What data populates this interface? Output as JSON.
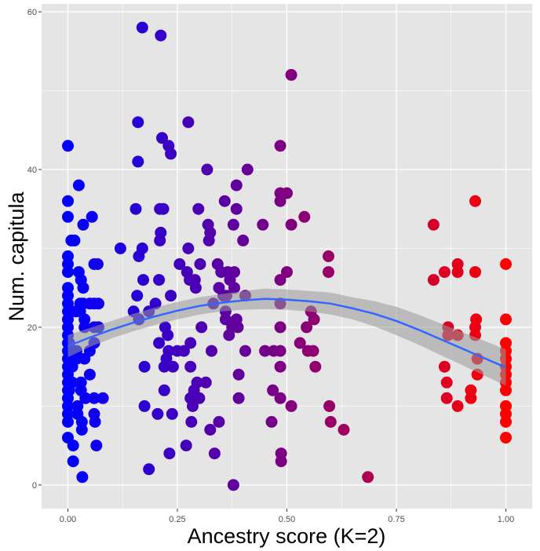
{
  "chart_data": {
    "type": "scatter",
    "xlabel": "Ancestry score (K=2)",
    "ylabel": "Num. capitula",
    "xlim": [
      -0.06,
      1.06
    ],
    "ylim": [
      -3,
      61
    ],
    "x_ticks": [
      0.0,
      0.25,
      0.5,
      0.75,
      1.0
    ],
    "x_tick_labels": [
      "0.00",
      "0.25",
      "0.50",
      "0.75",
      "1.00"
    ],
    "y_ticks": [
      0,
      20,
      40,
      60
    ],
    "y_tick_labels": [
      "0",
      "20",
      "40",
      "60"
    ],
    "grid": true,
    "legend": "none",
    "colors": {
      "panel": "#e5e5e5",
      "grid": "#ffffff",
      "low": "#0000ff",
      "high": "#ff0000",
      "fit_line": "#3366ff",
      "band": "#999999"
    },
    "points": [
      [
        0.0,
        43
      ],
      [
        0.0,
        36
      ],
      [
        0.0,
        34
      ],
      [
        0.0,
        29
      ],
      [
        0.0,
        28
      ],
      [
        0.0,
        27
      ],
      [
        0.0,
        25
      ],
      [
        0.0,
        24
      ],
      [
        0.0,
        23
      ],
      [
        0.0,
        22
      ],
      [
        0.0,
        21
      ],
      [
        0.0,
        20
      ],
      [
        0.0,
        19
      ],
      [
        0.0,
        18
      ],
      [
        0.0,
        17
      ],
      [
        0.0,
        16
      ],
      [
        0.0,
        15
      ],
      [
        0.0,
        14
      ],
      [
        0.0,
        13
      ],
      [
        0.0,
        12
      ],
      [
        0.0,
        11
      ],
      [
        0.0,
        10
      ],
      [
        0.0,
        9
      ],
      [
        0.0,
        8
      ],
      [
        0.0,
        6
      ],
      [
        0.003,
        18
      ],
      [
        0.003,
        12
      ],
      [
        0.005,
        16
      ],
      [
        0.005,
        22
      ],
      [
        0.008,
        31
      ],
      [
        0.01,
        15
      ],
      [
        0.01,
        13
      ],
      [
        0.012,
        5
      ],
      [
        0.012,
        3
      ],
      [
        0.015,
        31
      ],
      [
        0.018,
        22
      ],
      [
        0.02,
        17
      ],
      [
        0.02,
        16
      ],
      [
        0.022,
        10
      ],
      [
        0.022,
        9
      ],
      [
        0.025,
        27
      ],
      [
        0.025,
        38
      ],
      [
        0.028,
        23
      ],
      [
        0.028,
        22
      ],
      [
        0.03,
        26
      ],
      [
        0.03,
        13
      ],
      [
        0.03,
        12
      ],
      [
        0.032,
        8
      ],
      [
        0.032,
        7
      ],
      [
        0.033,
        1
      ],
      [
        0.035,
        33
      ],
      [
        0.035,
        25
      ],
      [
        0.035,
        23
      ],
      [
        0.038,
        21
      ],
      [
        0.038,
        20
      ],
      [
        0.038,
        16
      ],
      [
        0.04,
        11
      ],
      [
        0.05,
        23
      ],
      [
        0.05,
        17
      ],
      [
        0.05,
        14
      ],
      [
        0.055,
        34
      ],
      [
        0.06,
        28
      ],
      [
        0.06,
        23
      ],
      [
        0.06,
        20
      ],
      [
        0.06,
        18
      ],
      [
        0.06,
        11
      ],
      [
        0.06,
        9
      ],
      [
        0.062,
        8
      ],
      [
        0.065,
        5
      ],
      [
        0.068,
        28
      ],
      [
        0.07,
        23
      ],
      [
        0.07,
        20
      ],
      [
        0.08,
        11
      ],
      [
        0.12,
        30
      ],
      [
        0.15,
        22
      ],
      [
        0.155,
        35
      ],
      [
        0.158,
        24
      ],
      [
        0.16,
        46
      ],
      [
        0.16,
        41
      ],
      [
        0.162,
        29
      ],
      [
        0.162,
        21
      ],
      [
        0.17,
        30
      ],
      [
        0.17,
        58
      ],
      [
        0.172,
        26
      ],
      [
        0.175,
        15
      ],
      [
        0.175,
        10
      ],
      [
        0.185,
        2
      ],
      [
        0.185,
        22
      ],
      [
        0.2,
        23
      ],
      [
        0.205,
        9
      ],
      [
        0.208,
        18
      ],
      [
        0.208,
        26
      ],
      [
        0.21,
        35
      ],
      [
        0.21,
        31
      ],
      [
        0.212,
        57
      ],
      [
        0.212,
        32
      ],
      [
        0.215,
        44
      ],
      [
        0.218,
        35
      ],
      [
        0.22,
        15
      ],
      [
        0.22,
        12
      ],
      [
        0.222,
        20
      ],
      [
        0.225,
        16
      ],
      [
        0.228,
        19
      ],
      [
        0.23,
        43
      ],
      [
        0.23,
        17
      ],
      [
        0.232,
        4
      ],
      [
        0.235,
        42
      ],
      [
        0.235,
        24
      ],
      [
        0.238,
        9
      ],
      [
        0.24,
        15
      ],
      [
        0.25,
        17
      ],
      [
        0.255,
        28
      ],
      [
        0.265,
        17
      ],
      [
        0.27,
        5
      ],
      [
        0.272,
        27
      ],
      [
        0.275,
        46
      ],
      [
        0.275,
        30
      ],
      [
        0.278,
        26
      ],
      [
        0.28,
        18
      ],
      [
        0.28,
        15
      ],
      [
        0.28,
        11
      ],
      [
        0.282,
        8
      ],
      [
        0.285,
        10
      ],
      [
        0.288,
        12
      ],
      [
        0.29,
        26
      ],
      [
        0.292,
        25
      ],
      [
        0.295,
        13
      ],
      [
        0.298,
        35
      ],
      [
        0.3,
        11
      ],
      [
        0.302,
        28
      ],
      [
        0.305,
        20
      ],
      [
        0.315,
        13
      ],
      [
        0.318,
        40
      ],
      [
        0.32,
        33
      ],
      [
        0.322,
        31
      ],
      [
        0.325,
        32
      ],
      [
        0.325,
        7
      ],
      [
        0.328,
        17
      ],
      [
        0.332,
        23
      ],
      [
        0.335,
        4
      ],
      [
        0.342,
        28
      ],
      [
        0.345,
        25
      ],
      [
        0.345,
        8
      ],
      [
        0.35,
        27
      ],
      [
        0.355,
        24
      ],
      [
        0.358,
        36
      ],
      [
        0.36,
        22
      ],
      [
        0.36,
        21
      ],
      [
        0.362,
        24
      ],
      [
        0.365,
        27
      ],
      [
        0.368,
        19
      ],
      [
        0.37,
        26
      ],
      [
        0.375,
        20
      ],
      [
        0.378,
        0
      ],
      [
        0.378,
        33
      ],
      [
        0.38,
        25
      ],
      [
        0.38,
        27
      ],
      [
        0.385,
        38
      ],
      [
        0.385,
        35
      ],
      [
        0.385,
        21
      ],
      [
        0.388,
        20
      ],
      [
        0.39,
        14
      ],
      [
        0.39,
        11
      ],
      [
        0.4,
        31
      ],
      [
        0.405,
        17
      ],
      [
        0.405,
        24
      ],
      [
        0.41,
        40
      ],
      [
        0.445,
        33
      ],
      [
        0.45,
        17
      ],
      [
        0.465,
        8
      ],
      [
        0.468,
        12
      ],
      [
        0.47,
        17
      ],
      [
        0.485,
        43
      ],
      [
        0.485,
        37
      ],
      [
        0.485,
        36
      ],
      [
        0.485,
        26
      ],
      [
        0.485,
        23
      ],
      [
        0.485,
        20
      ],
      [
        0.485,
        17
      ],
      [
        0.485,
        15
      ],
      [
        0.485,
        11
      ],
      [
        0.487,
        4
      ],
      [
        0.487,
        3
      ],
      [
        0.5,
        37
      ],
      [
        0.5,
        27
      ],
      [
        0.51,
        52
      ],
      [
        0.51,
        33
      ],
      [
        0.51,
        10
      ],
      [
        0.53,
        18
      ],
      [
        0.54,
        34
      ],
      [
        0.545,
        20
      ],
      [
        0.548,
        17
      ],
      [
        0.555,
        22
      ],
      [
        0.56,
        17
      ],
      [
        0.562,
        21
      ],
      [
        0.565,
        15
      ],
      [
        0.595,
        29
      ],
      [
        0.595,
        27
      ],
      [
        0.597,
        10
      ],
      [
        0.6,
        8
      ],
      [
        0.63,
        7
      ],
      [
        0.685,
        1
      ],
      [
        0.835,
        33
      ],
      [
        0.835,
        26
      ],
      [
        0.86,
        27
      ],
      [
        0.86,
        15
      ],
      [
        0.865,
        13
      ],
      [
        0.865,
        11
      ],
      [
        0.868,
        20
      ],
      [
        0.868,
        19
      ],
      [
        0.89,
        28
      ],
      [
        0.89,
        27
      ],
      [
        0.89,
        19
      ],
      [
        0.89,
        10
      ],
      [
        0.92,
        12
      ],
      [
        0.92,
        11
      ],
      [
        0.93,
        36
      ],
      [
        0.93,
        27
      ],
      [
        0.93,
        20
      ],
      [
        0.93,
        19
      ],
      [
        0.932,
        21
      ],
      [
        0.935,
        16
      ],
      [
        0.935,
        14
      ],
      [
        1.0,
        28
      ],
      [
        1.0,
        21
      ],
      [
        1.0,
        18
      ],
      [
        1.0,
        17
      ],
      [
        1.0,
        16
      ],
      [
        1.0,
        15
      ],
      [
        1.0,
        14
      ],
      [
        1.0,
        13
      ],
      [
        1.0,
        12
      ],
      [
        1.0,
        10
      ],
      [
        1.0,
        9
      ],
      [
        1.0,
        8
      ],
      [
        1.0,
        6
      ]
    ],
    "fit": {
      "x": [
        0.0,
        0.05,
        0.1,
        0.15,
        0.2,
        0.25,
        0.3,
        0.35,
        0.4,
        0.45,
        0.5,
        0.55,
        0.6,
        0.65,
        0.7,
        0.75,
        0.8,
        0.85,
        0.9,
        0.95,
        1.0
      ],
      "y": [
        17.6,
        18.7,
        19.7,
        20.6,
        21.4,
        22.1,
        22.7,
        23.1,
        23.4,
        23.6,
        23.5,
        23.3,
        23.0,
        22.4,
        21.7,
        20.8,
        19.7,
        18.5,
        17.3,
        16.1,
        14.9
      ],
      "lower": [
        16.2,
        17.5,
        18.6,
        19.5,
        20.3,
        21.0,
        21.6,
        22.0,
        22.2,
        22.3,
        22.2,
        22.0,
        21.6,
        21.0,
        20.1,
        19.0,
        17.8,
        16.5,
        15.2,
        13.9,
        12.6
      ],
      "upper": [
        19.0,
        19.9,
        20.8,
        21.7,
        22.5,
        23.2,
        23.8,
        24.2,
        24.6,
        24.9,
        24.8,
        24.6,
        24.4,
        23.8,
        23.3,
        22.6,
        21.6,
        20.5,
        19.4,
        18.3,
        17.2
      ]
    }
  }
}
